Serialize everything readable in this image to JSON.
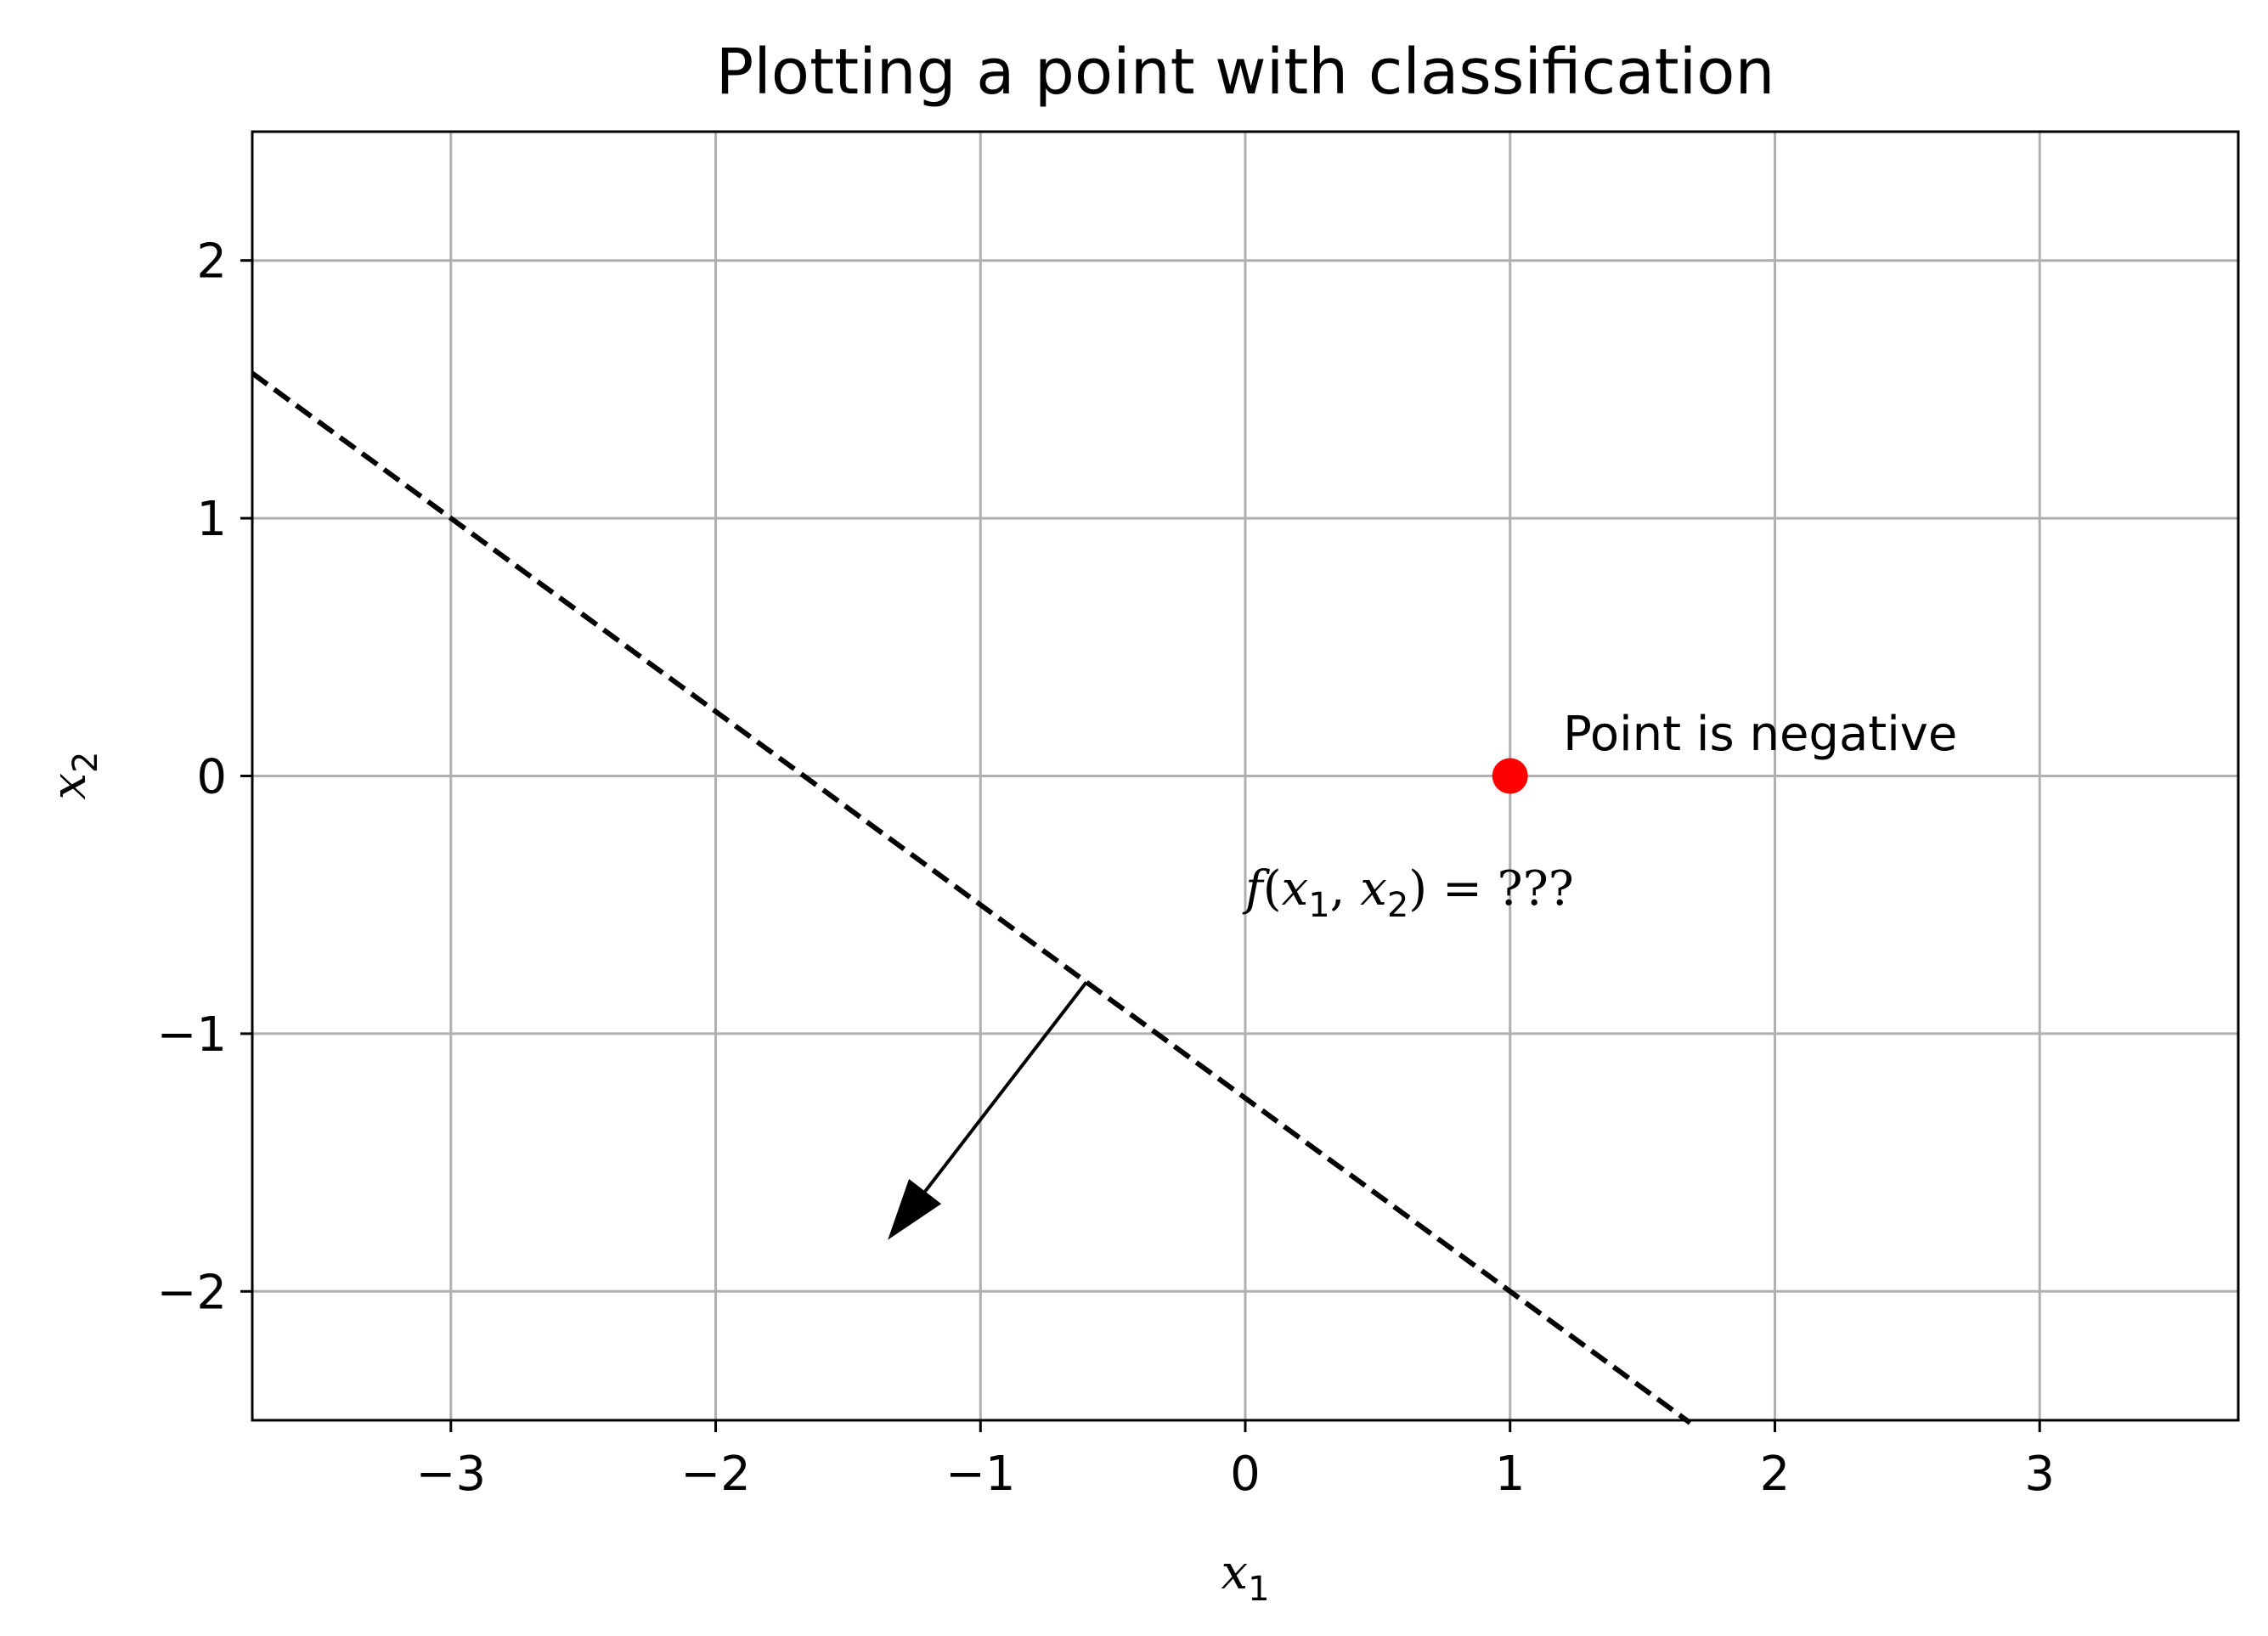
{
  "chart_data": {
    "type": "scatter",
    "title": "Plotting a point with classification",
    "xlabel": "x",
    "xlabel_sub": "1",
    "ylabel": "x",
    "ylabel_sub": "2",
    "xlim": [
      -3.75,
      3.75
    ],
    "ylim": [
      -2.5,
      2.5
    ],
    "grid": true,
    "xticks": [
      -3,
      -2,
      -1,
      0,
      1,
      2,
      3
    ],
    "xtick_labels": [
      "−3",
      "−2",
      "−1",
      "0",
      "1",
      "2",
      "3"
    ],
    "yticks": [
      -2,
      -1,
      0,
      1,
      2
    ],
    "ytick_labels": [
      "−2",
      "−1",
      "0",
      "1",
      "2"
    ],
    "point": {
      "x": 1,
      "y": 0,
      "color": "#ff0000"
    },
    "boundary": {
      "style": "dashed",
      "color": "#000000",
      "points": [
        [
          -3.75,
          1.5625
        ],
        [
          1.68,
          -2.51
        ]
      ]
    },
    "normal_arrow": {
      "from": [
        -0.6,
        -0.8
      ],
      "to": [
        -1.35,
        -1.8
      ],
      "color": "#000000"
    },
    "annotations": {
      "point_label": {
        "text": "Point is negative",
        "x": 1.2,
        "y": 0.1
      },
      "formula": {
        "x": 0,
        "y": -0.5,
        "f": "f",
        "open": "(",
        "var1": "x",
        "sub1": "1",
        "sep": ", ",
        "var2": "x",
        "sub2": "2",
        "close": ") = ???"
      }
    }
  }
}
